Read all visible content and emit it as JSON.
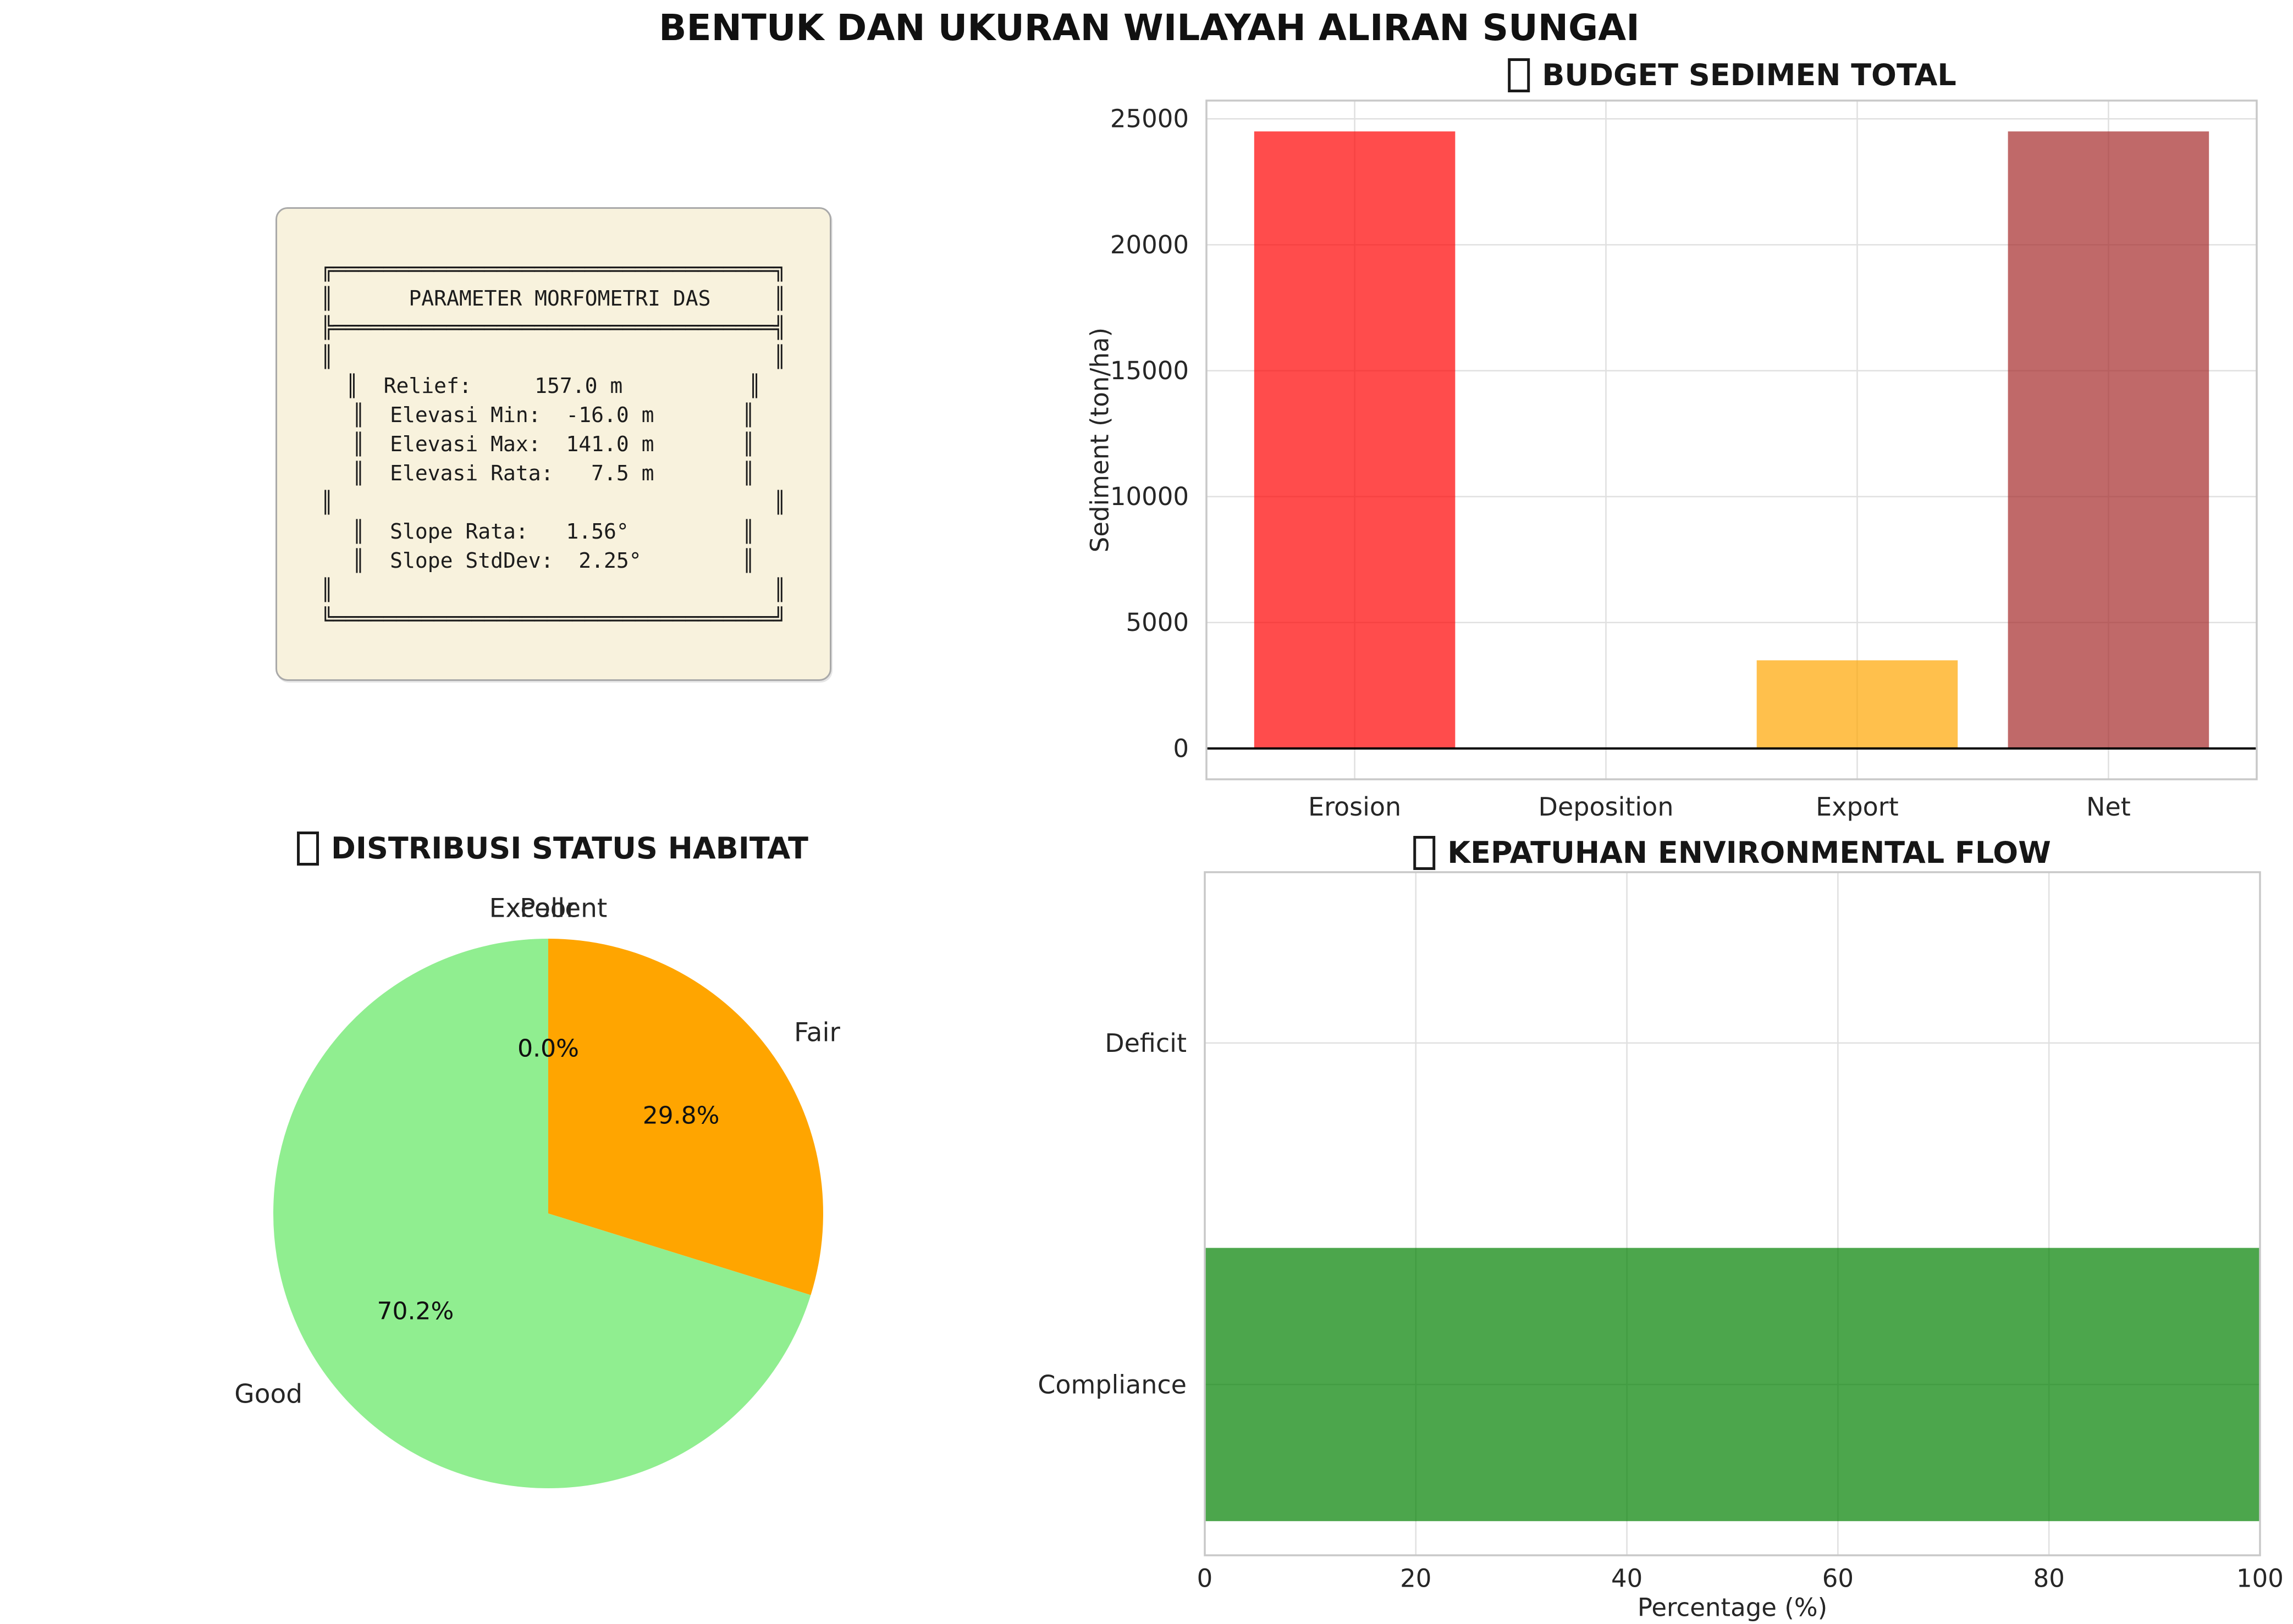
{
  "figure": {
    "suptitle": "BENTUK DAN UKURAN WILAYAH ALIRAN SUNGAI",
    "background": "#ffffff"
  },
  "param_box": {
    "background": "#f8f2dd",
    "border_color": "#a9a9a9",
    "text_color": "#1c1c1c",
    "lines": [
      "╔═══════════════════════════════════╗",
      "║      PARAMETER MORFOMETRI DAS     ║",
      "╠═══════════════════════════════════╣",
      "║                                   ║",
      "║  Relief:     157.0 m          ║",
      "║  Elevasi Min:  -16.0 m       ║",
      "║  Elevasi Max:  141.0 m       ║",
      "║  Elevasi Rata:   7.5 m       ║",
      "║                                   ║",
      "║  Slope Rata:   1.56°         ║",
      "║  Slope StdDev:  2.25°        ║",
      "║                                   ║",
      "╚═══════════════════════════════════╝"
    ]
  },
  "chart_data": [
    {
      "id": "sediment",
      "type": "bar",
      "title": "BUDGET SEDIMEN TOTAL",
      "title_icon": "missing-glyph",
      "categories": [
        "Erosion",
        "Deposition",
        "Export",
        "Net"
      ],
      "values": [
        24500,
        0,
        3500,
        24500
      ],
      "colors": [
        "#FF0000",
        null,
        "#FFA500",
        "#A52A2A"
      ],
      "bar_alpha": 0.7,
      "bar_width": 0.8,
      "xlabel": "",
      "ylabel": "Sediment (ton/ha)",
      "yticks": [
        0,
        5000,
        10000,
        15000,
        20000,
        25000
      ],
      "ylim": [
        -1225,
        25725
      ],
      "xlim": [
        -0.59,
        3.59
      ],
      "grid": true,
      "zero_line": true,
      "legend": "none"
    },
    {
      "id": "habitat",
      "type": "pie",
      "title": "DISTRIBUSI STATUS HABITAT",
      "title_icon": "missing-glyph",
      "labels": [
        "Excellent",
        "Poor",
        "Fair",
        "Good"
      ],
      "values": [
        0.0,
        0.0,
        29.8,
        70.2
      ],
      "pct_labels": [
        "0.0%",
        "0.0%",
        "29.8%",
        "70.2%"
      ],
      "colors": [
        null,
        null,
        "#FFA500",
        "#90EE90"
      ],
      "start_angle": 90,
      "clockwise": true,
      "legend": "none"
    },
    {
      "id": "eflow",
      "type": "hbar",
      "title": "KEPATUHAN ENVIRONMENTAL FLOW",
      "title_icon": "missing-glyph",
      "categories": [
        "Compliance",
        "Deficit"
      ],
      "values": [
        100,
        0
      ],
      "colors": [
        "#008000",
        null
      ],
      "bar_alpha": 0.7,
      "bar_height": 0.8,
      "xlabel": "Percentage (%)",
      "xticks": [
        0,
        20,
        40,
        60,
        80,
        100
      ],
      "xlim": [
        0,
        100
      ],
      "ylim": [
        -0.5,
        1.5
      ],
      "grid": true,
      "legend": "none"
    }
  ]
}
